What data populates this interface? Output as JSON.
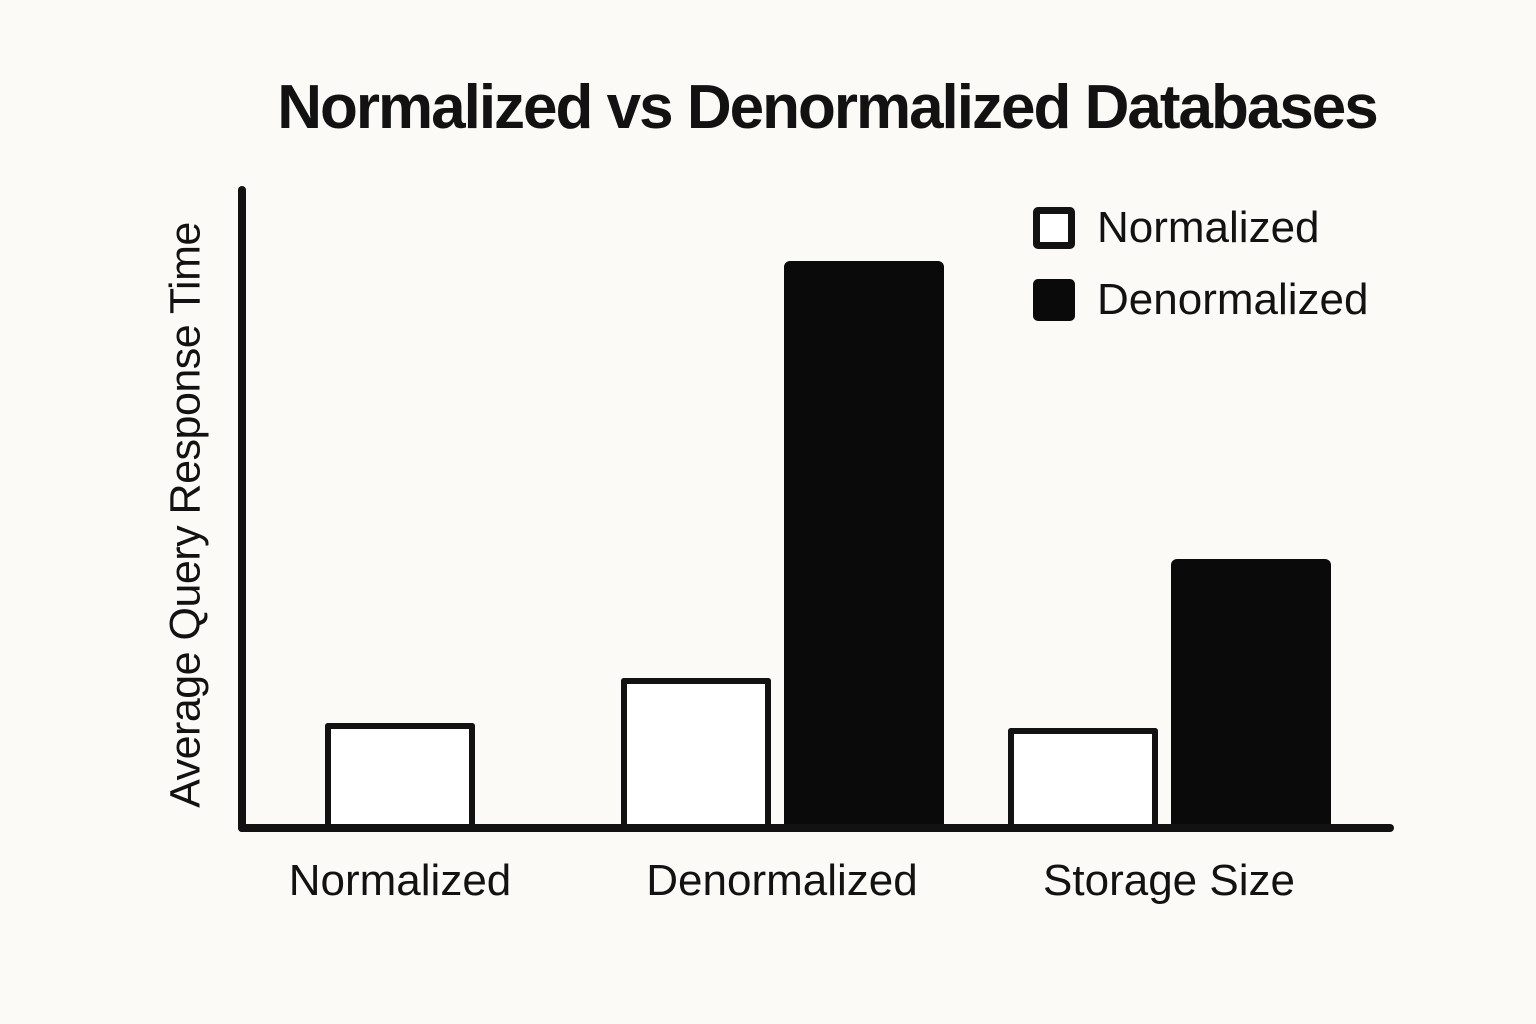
{
  "title": "Normalized vs Denormalized Databases",
  "y_axis_label": "Average Query Response Time",
  "legend": {
    "items": [
      {
        "label": "Normalized",
        "swatch": "white-outlined-square"
      },
      {
        "label": "Denormalized",
        "swatch": "black-filled-square"
      }
    ]
  },
  "colors": {
    "background": "#FCFAF7",
    "ink": "#121212",
    "bar_black": "#0A0A0A",
    "bar_white": "#FFFFFF"
  },
  "chart_data": {
    "type": "bar",
    "title": "Normalized vs Denormalized Databases",
    "xlabel": "",
    "ylabel": "Average Query Response Time",
    "categories": [
      "Normalized",
      "Denormalized",
      "Storage Size"
    ],
    "series": [
      {
        "name": "Normalized",
        "fill": "white",
        "values": [
          0.18,
          0.26,
          0.17
        ]
      },
      {
        "name": "Denormalized",
        "fill": "black",
        "values": [
          null,
          1.0,
          0.47
        ]
      }
    ],
    "value_units": "relative (no numeric ticks shown on axis)",
    "ylim": [
      0,
      1.13
    ],
    "grid": false,
    "axis_ticks": "none",
    "legend_position": "top-right"
  }
}
